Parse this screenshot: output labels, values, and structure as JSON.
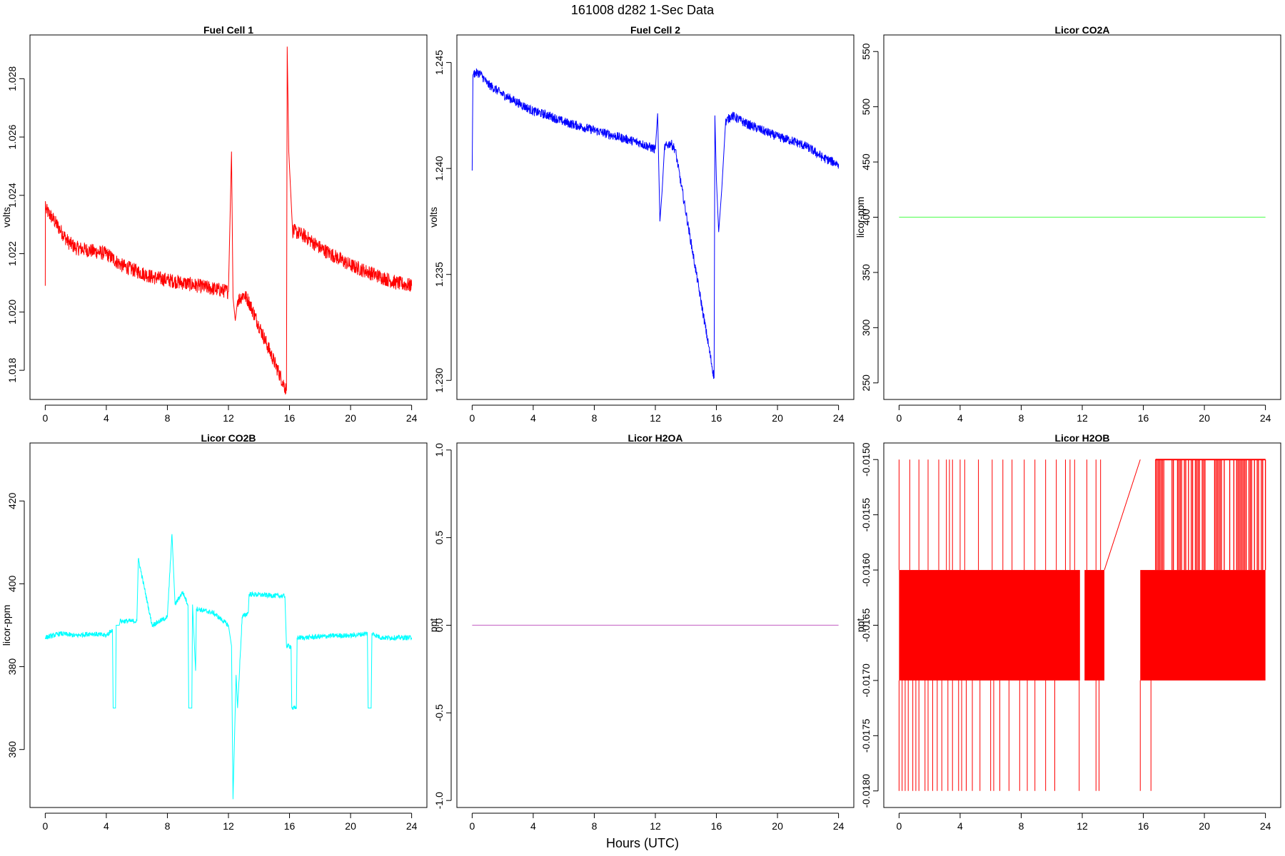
{
  "figure": {
    "title": "161008   d282   1-Sec Data",
    "xlabel": "Hours (UTC)"
  },
  "chart_data": [
    {
      "type": "line",
      "title": "Fuel Cell 1",
      "ylabel": "volts",
      "color": "#ff0000",
      "xlim": [
        -1,
        25
      ],
      "ylim": [
        1.017,
        1.0295
      ],
      "xticks": [
        0,
        4,
        8,
        12,
        16,
        20,
        24
      ],
      "yticks": [
        1.018,
        1.02,
        1.022,
        1.024,
        1.026,
        1.028
      ],
      "ytick_labels": [
        "1.018",
        "1.020",
        "1.022",
        "1.024",
        "1.026",
        "1.028"
      ],
      "noise": 0.00025,
      "x": [
        0,
        0.01,
        0.05,
        0.5,
        1,
        1.5,
        2,
        3,
        4,
        5,
        6,
        7,
        8,
        9,
        10,
        11,
        12,
        12.2,
        12.3,
        12.45,
        12.6,
        13,
        13.3,
        15.8,
        15.85,
        15.95,
        16.2,
        17,
        18,
        19,
        20,
        21,
        22,
        23,
        24
      ],
      "y": [
        1.0209,
        1.0238,
        1.0235,
        1.0232,
        1.0228,
        1.0224,
        1.0222,
        1.0221,
        1.022,
        1.0216,
        1.0214,
        1.0212,
        1.0211,
        1.021,
        1.0209,
        1.0208,
        1.0207,
        1.0255,
        1.0205,
        1.0197,
        1.0204,
        1.0206,
        1.0204,
        1.0173,
        1.0291,
        1.0255,
        1.0228,
        1.0226,
        1.0222,
        1.0219,
        1.0216,
        1.0214,
        1.0212,
        1.021,
        1.0209
      ]
    },
    {
      "type": "line",
      "title": "Fuel Cell 2",
      "ylabel": "volts",
      "color": "#0000ff",
      "xlim": [
        -1,
        25
      ],
      "ylim": [
        1.2291,
        1.2463
      ],
      "xticks": [
        0,
        4,
        8,
        12,
        16,
        20,
        24
      ],
      "yticks": [
        1.23,
        1.235,
        1.24,
        1.245
      ],
      "ytick_labels": [
        "1.230",
        "1.235",
        "1.240",
        "1.245"
      ],
      "noise": 0.00022,
      "x": [
        0,
        0.05,
        0.1,
        0.5,
        1,
        2,
        3,
        4,
        5,
        6,
        7,
        8,
        9,
        10,
        11,
        12,
        12.15,
        12.3,
        12.45,
        12.6,
        13,
        13.3,
        15.85,
        15.9,
        16,
        16.15,
        16.35,
        16.6,
        17,
        18,
        19,
        20,
        21,
        22,
        23,
        24
      ],
      "y": [
        1.2399,
        1.2444,
        1.2445,
        1.2445,
        1.244,
        1.2435,
        1.2431,
        1.2427,
        1.2425,
        1.2422,
        1.242,
        1.2418,
        1.2416,
        1.2414,
        1.2412,
        1.2409,
        1.2426,
        1.2375,
        1.239,
        1.241,
        1.2412,
        1.2409,
        1.2301,
        1.2425,
        1.2395,
        1.237,
        1.239,
        1.2422,
        1.2425,
        1.2421,
        1.2418,
        1.2415,
        1.2413,
        1.241,
        1.2405,
        1.2402
      ]
    },
    {
      "type": "line",
      "title": "Licor CO2A",
      "ylabel": "licor-ppm",
      "color": "#66ff66",
      "xlim": [
        -1,
        25
      ],
      "ylim": [
        235,
        565
      ],
      "xticks": [
        0,
        4,
        8,
        12,
        16,
        20,
        24
      ],
      "yticks": [
        250,
        300,
        350,
        400,
        450,
        500,
        550
      ],
      "ytick_labels": [
        "250",
        "300",
        "350",
        "400",
        "450",
        "500",
        "550"
      ],
      "noise": 0,
      "x": [
        0,
        24
      ],
      "y": [
        400,
        400
      ]
    },
    {
      "type": "line",
      "title": "Licor CO2B",
      "ylabel": "licor-ppm",
      "color": "#00ffff",
      "xlim": [
        -1,
        25
      ],
      "ylim": [
        346,
        434
      ],
      "xticks": [
        0,
        4,
        8,
        12,
        16,
        20,
        24
      ],
      "yticks": [
        360,
        380,
        400,
        420
      ],
      "ytick_labels": [
        "360",
        "380",
        "400",
        "420"
      ],
      "noise": 0.6,
      "x": [
        0,
        1,
        2,
        3,
        4,
        4.4,
        4.45,
        4.6,
        4.65,
        4.85,
        4.9,
        6,
        6.1,
        7,
        8,
        8.3,
        8.5,
        9,
        9.35,
        9.4,
        9.6,
        9.65,
        9.85,
        9.9,
        11,
        12,
        12.2,
        12.3,
        12.5,
        12.6,
        12.9,
        13.3,
        13.35,
        15.7,
        15.8,
        16.1,
        16.15,
        16.45,
        16.5,
        17,
        19,
        20,
        21.1,
        21.15,
        21.35,
        21.4,
        22,
        23,
        24
      ],
      "y": [
        387,
        388,
        387.5,
        388,
        387.5,
        389,
        370,
        370,
        390,
        390,
        391,
        391,
        406,
        390,
        392,
        412,
        395,
        398,
        395,
        370,
        370,
        395,
        379,
        394,
        393,
        390,
        385,
        348,
        378,
        370,
        392,
        393,
        397.5,
        397,
        385,
        385,
        370,
        370,
        387,
        387,
        387.5,
        387.5,
        388,
        370,
        370,
        388,
        387,
        387,
        387
      ]
    },
    {
      "type": "line",
      "title": "Licor H2OA",
      "ylabel": "ppt",
      "color": "#cc77cc",
      "xlim": [
        -1,
        25
      ],
      "ylim": [
        -1.04,
        1.04
      ],
      "xticks": [
        0,
        4,
        8,
        12,
        16,
        20,
        24
      ],
      "yticks": [
        -1.0,
        -0.5,
        0.0,
        0.5,
        1.0
      ],
      "ytick_labels": [
        "-1.0",
        "-0.5",
        "0.0",
        "0.5",
        "1.0"
      ],
      "noise": 0,
      "x": [
        0,
        24
      ],
      "y": [
        0,
        0
      ]
    },
    {
      "type": "line",
      "title": "Licor H2OB",
      "ylabel": "ppt",
      "color": "#ff0000",
      "xlim": [
        -1,
        25
      ],
      "ylim": [
        -0.01815,
        -0.01485
      ],
      "xticks": [
        0,
        4,
        8,
        12,
        16,
        20,
        24
      ],
      "yticks": [
        -0.018,
        -0.0175,
        -0.017,
        -0.0165,
        -0.016,
        -0.0155,
        -0.015
      ],
      "ytick_labels": [
        "-0.0180",
        "-0.0175",
        "-0.0170",
        "-0.0165",
        "-0.0160",
        "-0.0155",
        "-0.0150"
      ],
      "noise": 0,
      "levels": [
        -0.016,
        -0.017
      ],
      "spike_levels": [
        -0.015,
        -0.018
      ],
      "blocks": [
        [
          0,
          11.85
        ],
        [
          12.15,
          13.45
        ],
        [
          15.8,
          24
        ]
      ],
      "gap_line": {
        "x": [
          13.45,
          15.8
        ],
        "y": [
          -0.016,
          -0.015
        ]
      },
      "upper_spikes": [
        0,
        0.7,
        1.3,
        1.9,
        2.6,
        3.1,
        3.3,
        3.5,
        4.0,
        4.3,
        5.2,
        6.1,
        6.8,
        7.4,
        8.2,
        8.9,
        9.6,
        10.3,
        10.9,
        11.2,
        11.5,
        12.3,
        12.9,
        13.2
      ],
      "lower_spikes": [
        0,
        0.2,
        0.4,
        0.6,
        0.9,
        1.1,
        1.3,
        1.7,
        1.9,
        2.2,
        2.5,
        2.8,
        3.2,
        3.5,
        3.9,
        4.1,
        4.4,
        4.8,
        5.3,
        6.0,
        6.2,
        6.6,
        7.2,
        7.9,
        8.4,
        8.9,
        9.6,
        10.2,
        11.8,
        12.9,
        13.1,
        15.8,
        16.5
      ],
      "dense_upper_range": [
        16.8,
        24
      ]
    }
  ]
}
